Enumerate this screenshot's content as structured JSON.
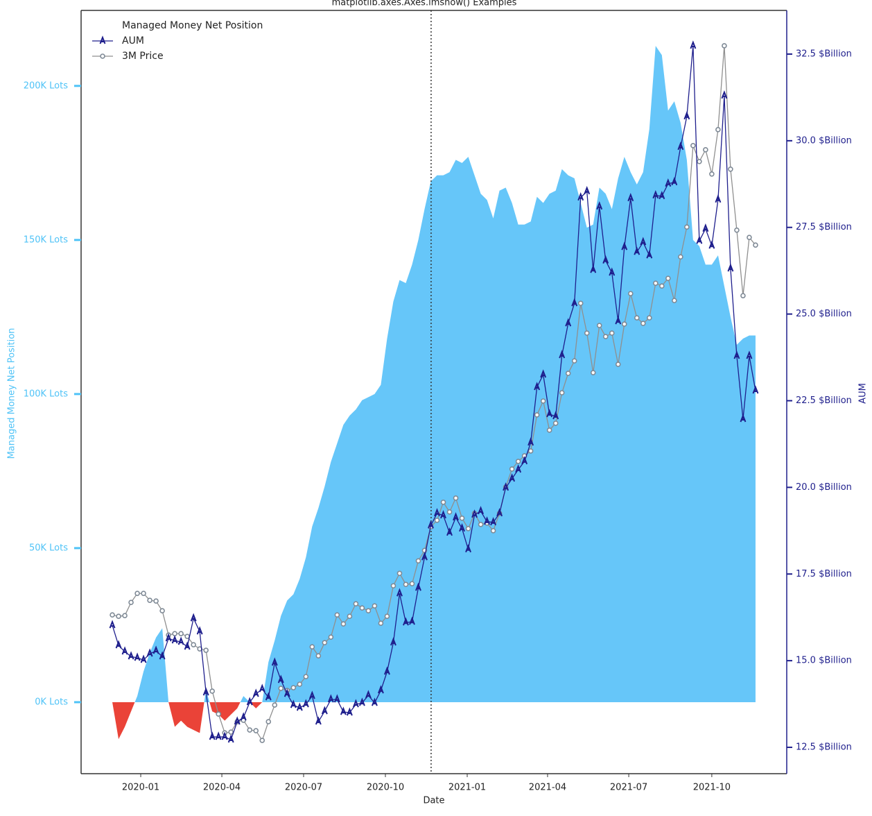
{
  "chart_data": {
    "type": "line",
    "title": "matplotlib.axes.Axes.imshow() Examples",
    "xlabel": "Date",
    "ylabel": "Managed Money Net Position",
    "y2label": "AUM",
    "legend_title": "Managed Money Net Position",
    "legend": "upper left",
    "x": [
      0,
      1,
      2,
      3,
      4,
      5,
      6,
      7,
      8,
      9,
      10,
      11,
      12,
      13,
      14,
      15,
      16,
      17,
      18,
      19,
      20,
      21,
      22,
      23,
      24,
      25,
      26,
      27,
      28,
      29,
      30,
      31,
      32,
      33,
      34,
      35,
      36,
      37,
      38,
      39,
      40,
      41,
      42,
      43,
      44,
      45,
      46,
      47,
      48,
      49,
      50,
      51,
      52,
      53,
      54,
      55,
      56,
      57,
      58,
      59,
      60,
      61,
      62,
      63,
      64,
      65,
      66,
      67,
      68,
      69,
      70,
      71,
      72,
      73,
      74,
      75,
      76,
      77,
      78,
      79,
      80,
      81,
      82,
      83,
      84,
      85,
      86,
      87,
      88,
      89,
      90,
      91,
      92,
      93,
      94,
      95,
      96,
      97,
      98,
      99,
      100,
      101,
      102,
      103
    ],
    "area": {
      "color": "#66c6f9",
      "negative_color": "#ea4338",
      "values": [
        0,
        -12000,
        -8000,
        -3000,
        2000,
        10000,
        16000,
        21000,
        24000,
        0,
        -8000,
        -6000,
        -8000,
        -9000,
        -10000,
        4000,
        -3000,
        -4000,
        -6000,
        -4000,
        -2000,
        2000,
        0,
        -2000,
        0,
        13000,
        20000,
        28000,
        33000,
        35000,
        40000,
        47000,
        57000,
        63000,
        70000,
        78000,
        84000,
        90000,
        93000,
        95000,
        98000,
        99000,
        100000,
        103000,
        118000,
        130000,
        137000,
        136000,
        142000,
        150000,
        160000,
        169000,
        171000,
        171000,
        172000,
        176000,
        175000,
        177000,
        171000,
        165000,
        163000,
        157000,
        166000,
        167000,
        162000,
        155000,
        155000,
        156000,
        164000,
        162000,
        165000,
        166000,
        173000,
        171000,
        170000,
        162000,
        154000,
        155000,
        167000,
        165000,
        160000,
        170000,
        177000,
        172000,
        168000,
        172000,
        186000,
        213000,
        210000,
        192000,
        195000,
        188000,
        176000,
        150000,
        148000,
        142000,
        142000,
        145000,
        135000,
        125000,
        116000,
        118000,
        119000,
        119000
      ]
    },
    "series": [
      {
        "name": "AUM",
        "color": "#1e1e8c",
        "axis": "y2",
        "marker": "triangle",
        "values": [
          16.02,
          15.44,
          15.26,
          15.12,
          15.08,
          15.02,
          15.2,
          15.28,
          15.12,
          15.64,
          15.58,
          15.54,
          15.4,
          16.22,
          15.84,
          14.08,
          12.8,
          12.8,
          12.8,
          12.72,
          13.24,
          13.36,
          13.8,
          14.04,
          14.18,
          13.94,
          14.94,
          14.44,
          14.04,
          13.72,
          13.64,
          13.74,
          13.98,
          13.24,
          13.54,
          13.88,
          13.88,
          13.52,
          13.5,
          13.74,
          13.78,
          14.0,
          13.78,
          14.14,
          14.68,
          15.52,
          16.94,
          16.1,
          16.12,
          17.1,
          17.98,
          18.9,
          19.25,
          19.19,
          18.69,
          19.13,
          18.81,
          18.21,
          19.21,
          19.31,
          19.01,
          18.99,
          19.25,
          19.99,
          20.25,
          20.51,
          20.75,
          21.29,
          22.89,
          23.25,
          22.11,
          22.05,
          23.81,
          24.73,
          25.31,
          28.36,
          28.54,
          26.27,
          28.1,
          26.54,
          26.19,
          24.79,
          26.93,
          28.34,
          26.79,
          27.07,
          26.69,
          28.42,
          28.4,
          28.76,
          28.8,
          29.82,
          30.7,
          32.74,
          27.11,
          27.46,
          26.97,
          28.3,
          31.3,
          26.31,
          23.79,
          21.97,
          23.79,
          22.79
        ]
      },
      {
        "name": "3M Price",
        "color": "#8f8f8f",
        "axis": "y2",
        "marker": "circle",
        "values": [
          16.32,
          16.28,
          16.3,
          16.68,
          16.94,
          16.94,
          16.74,
          16.72,
          16.44,
          15.74,
          15.78,
          15.78,
          15.7,
          15.46,
          15.34,
          15.3,
          14.12,
          13.46,
          12.92,
          12.94,
          13.24,
          13.28,
          13.0,
          12.98,
          12.7,
          13.24,
          13.72,
          14.2,
          14.14,
          14.22,
          14.32,
          14.54,
          15.4,
          15.14,
          15.52,
          15.68,
          16.32,
          16.06,
          16.28,
          16.64,
          16.52,
          16.44,
          16.58,
          16.08,
          16.28,
          17.16,
          17.52,
          17.2,
          17.22,
          17.88,
          18.18,
          18.86,
          19.05,
          19.57,
          19.29,
          19.69,
          19.11,
          18.81,
          19.25,
          18.93,
          18.97,
          18.75,
          19.25,
          20.01,
          20.53,
          20.75,
          20.91,
          21.05,
          22.09,
          22.49,
          21.65,
          21.85,
          22.73,
          23.29,
          23.65,
          25.31,
          24.45,
          23.31,
          24.67,
          24.35,
          24.45,
          23.55,
          24.71,
          25.59,
          24.89,
          24.73,
          24.89,
          25.89,
          25.81,
          26.03,
          25.39,
          26.65,
          27.51,
          29.86,
          29.4,
          29.74,
          29.04,
          30.32,
          32.74,
          29.18,
          27.42,
          25.53,
          27.21,
          26.99
        ]
      }
    ],
    "vline": 51.05,
    "xlim": [
      -5.0,
      108.0
    ],
    "xticks": [
      {
        "value": 4.55,
        "label": "2020-01"
      },
      {
        "value": 17.54,
        "label": "2020-04"
      },
      {
        "value": 30.63,
        "label": "2020-07"
      },
      {
        "value": 43.73,
        "label": "2020-10"
      },
      {
        "value": 56.83,
        "label": "2021-01"
      },
      {
        "value": 69.7,
        "label": "2021-04"
      },
      {
        "value": 82.7,
        "label": "2021-07"
      },
      {
        "value": 96.0,
        "label": "2021-10"
      }
    ],
    "ylim": [
      -23200,
      224500
    ],
    "yticks": [
      {
        "value": 0,
        "label": "0K Lots"
      },
      {
        "value": 50000,
        "label": "50K Lots"
      },
      {
        "value": 100000,
        "label": "100K Lots"
      },
      {
        "value": 150000,
        "label": "150K Lots"
      },
      {
        "value": 200000,
        "label": "200K Lots"
      }
    ],
    "y2lim": [
      11.74,
      33.76
    ],
    "y2ticks": [
      {
        "value": 12.5,
        "label": "12.5 $Billion"
      },
      {
        "value": 15.0,
        "label": "15.0 $Billion"
      },
      {
        "value": 17.5,
        "label": "17.5 $Billion"
      },
      {
        "value": 20.0,
        "label": "20.0 $Billion"
      },
      {
        "value": 22.5,
        "label": "22.5 $Billion"
      },
      {
        "value": 25.0,
        "label": "25.0 $Billion"
      },
      {
        "value": 27.5,
        "label": "27.5 $Billion"
      },
      {
        "value": 30.0,
        "label": "30.0 $Billion"
      },
      {
        "value": 32.5,
        "label": "32.5 $Billion"
      }
    ],
    "ytick_color": "#4fc3f7",
    "y2tick_color": "#1e1e8c"
  }
}
